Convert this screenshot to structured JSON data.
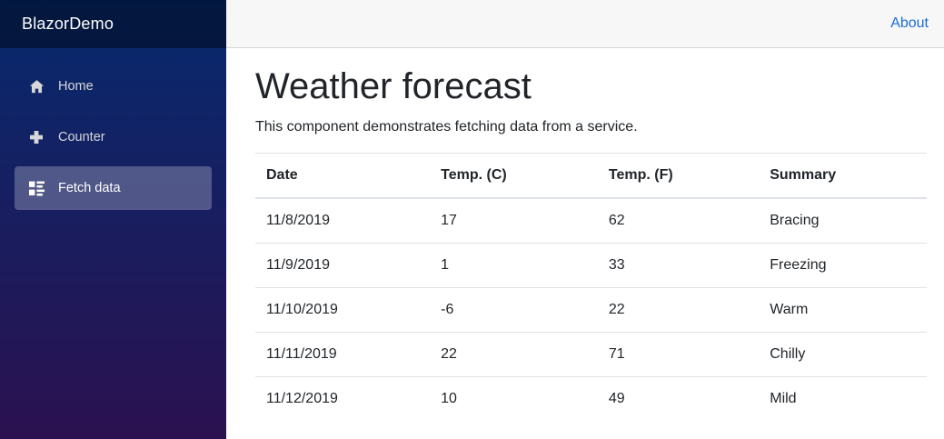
{
  "brand": {
    "label": "BlazorDemo"
  },
  "sidebar": {
    "items": [
      {
        "label": "Home",
        "icon": "home-icon",
        "active": false
      },
      {
        "label": "Counter",
        "icon": "plus-icon",
        "active": false
      },
      {
        "label": "Fetch data",
        "icon": "list-rich-icon",
        "active": true
      }
    ]
  },
  "header": {
    "about_label": "About"
  },
  "main": {
    "title": "Weather forecast",
    "subtitle": "This component demonstrates fetching data from a service.",
    "table": {
      "columns": [
        "Date",
        "Temp. (C)",
        "Temp. (F)",
        "Summary"
      ],
      "rows": [
        [
          "11/8/2019",
          "17",
          "62",
          "Bracing"
        ],
        [
          "11/9/2019",
          "1",
          "33",
          "Freezing"
        ],
        [
          "11/10/2019",
          "-6",
          "22",
          "Warm"
        ],
        [
          "11/11/2019",
          "22",
          "71",
          "Chilly"
        ],
        [
          "11/12/2019",
          "10",
          "49",
          "Mild"
        ]
      ]
    }
  },
  "colors": {
    "sidebar_gradient_top": "#062a6e",
    "sidebar_gradient_bottom": "#2b1150",
    "brand_bar_overlay": "rgba(0,0,0,0.42)",
    "nav_text": "#d7d7d7",
    "nav_active_bg": "rgba(255,255,255,0.25)",
    "top_row_bg": "#f7f7f7",
    "top_row_border": "#d6d5d5",
    "link_blue": "#1a6cd6",
    "table_border": "#dee2e6",
    "body_text": "#212529"
  }
}
